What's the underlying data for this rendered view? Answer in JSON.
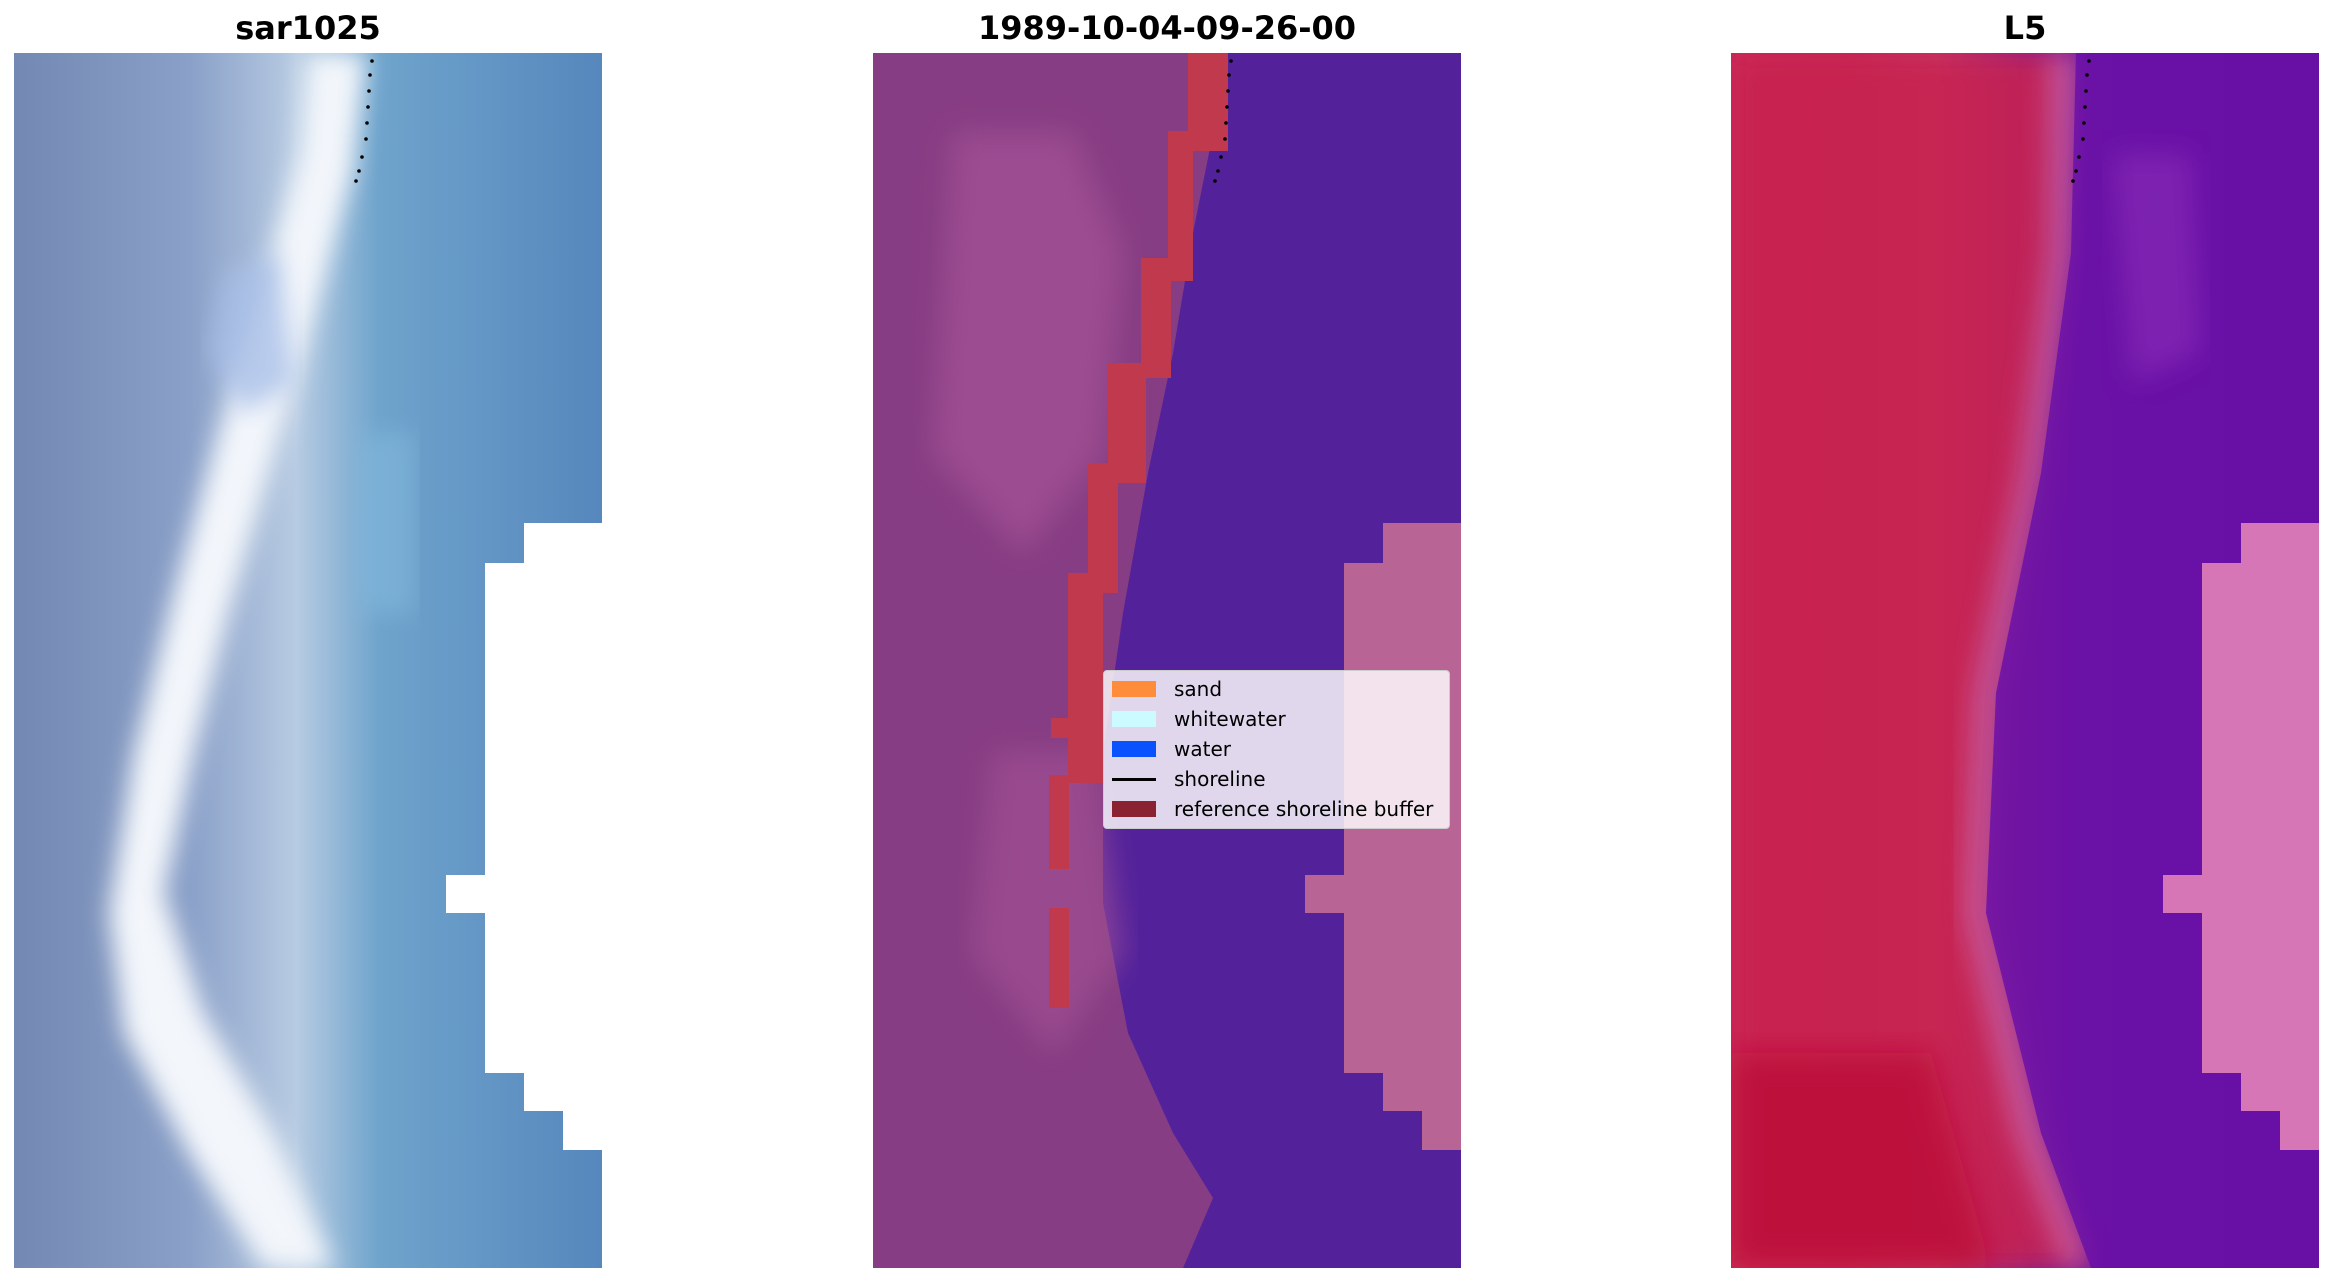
{
  "figure": {
    "panels": [
      {
        "title": "sar1025"
      },
      {
        "title": "1989-10-04-09-26-00"
      },
      {
        "title": "L5"
      }
    ],
    "legend": {
      "items": [
        {
          "label": "sand",
          "color": "#ff8c3a"
        },
        {
          "label": "whitewater",
          "color": "#ccfbff"
        },
        {
          "label": "water",
          "color": "#0b52ff"
        },
        {
          "label": "shoreline",
          "color": "#000000"
        },
        {
          "label": "reference shoreline buffer",
          "color": "#8b2232"
        }
      ]
    }
  }
}
